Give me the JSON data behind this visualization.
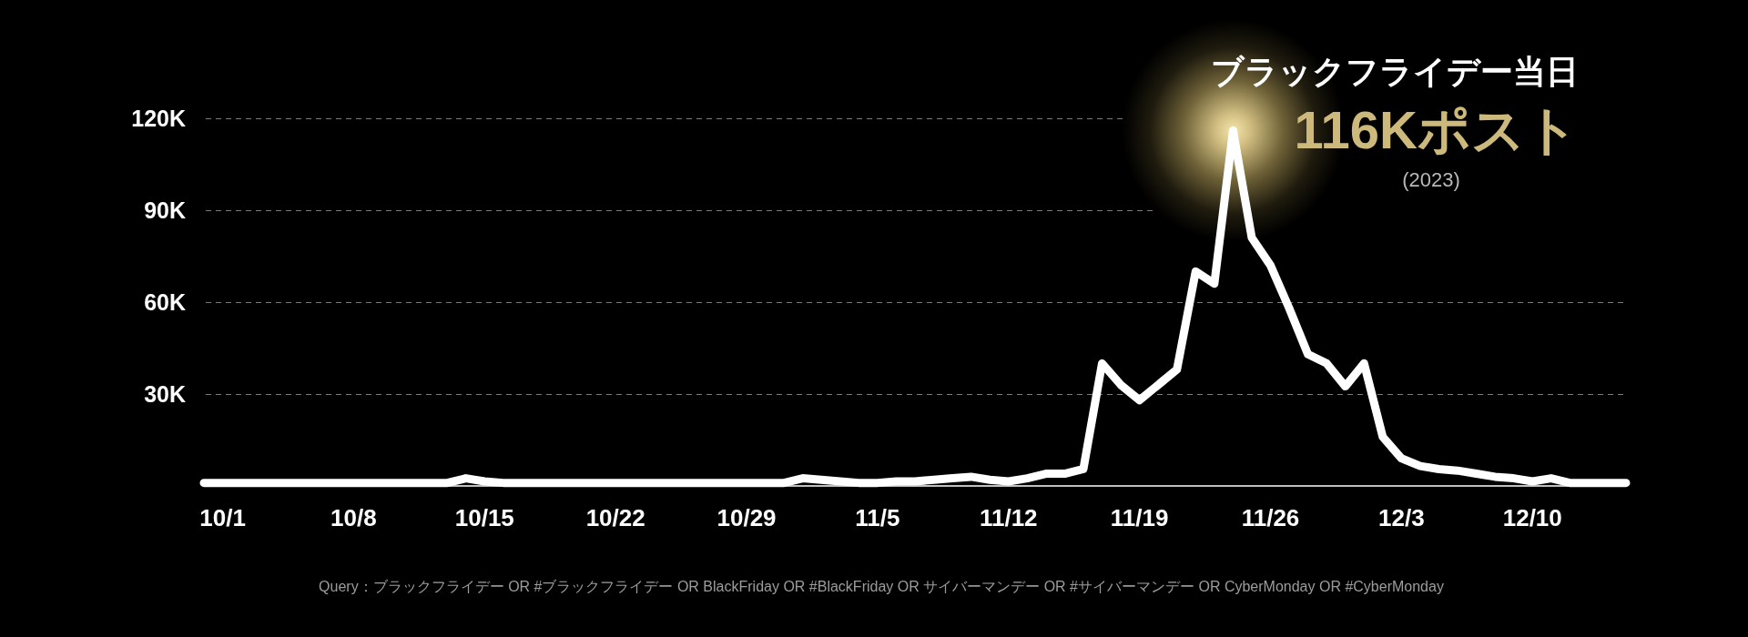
{
  "chart_data": {
    "type": "line",
    "categories": [
      null,
      "10/1",
      null,
      null,
      null,
      null,
      null,
      null,
      "10/8",
      null,
      null,
      null,
      null,
      null,
      null,
      "10/15",
      null,
      null,
      null,
      null,
      null,
      null,
      "10/22",
      null,
      null,
      null,
      null,
      null,
      null,
      "10/29",
      null,
      null,
      null,
      null,
      null,
      null,
      "11/5",
      null,
      null,
      null,
      null,
      null,
      null,
      "11/12",
      null,
      null,
      null,
      null,
      null,
      null,
      "11/19",
      null,
      null,
      null,
      null,
      null,
      null,
      "11/26",
      null,
      null,
      null,
      null,
      null,
      null,
      "12/3",
      null,
      null,
      null,
      null,
      null,
      null,
      "12/10",
      null,
      null,
      null,
      null,
      null
    ],
    "values": [
      1000,
      1000,
      1000,
      1000,
      1000,
      1000,
      1000,
      1000,
      1000,
      1000,
      1000,
      1000,
      1000,
      1000,
      2500,
      1500,
      1000,
      1000,
      1000,
      1000,
      1000,
      1000,
      1000,
      1000,
      1000,
      1000,
      1000,
      1000,
      1000,
      1000,
      1000,
      1000,
      2500,
      2000,
      1500,
      1000,
      1000,
      1500,
      1500,
      2000,
      2500,
      3000,
      2000,
      1500,
      2500,
      4000,
      4000,
      5500,
      40000,
      33000,
      28000,
      33000,
      38000,
      70000,
      66000,
      116000,
      81000,
      72000,
      58000,
      43000,
      40000,
      32500,
      40000,
      16000,
      9000,
      6500,
      5500,
      5000,
      4000,
      3000,
      2500,
      1500,
      2500,
      1000,
      1000,
      1000,
      1000
    ],
    "color": "#ffffff",
    "ylim": [
      0,
      120000
    ],
    "yticks": [
      {
        "value": 30000,
        "label": "30K"
      },
      {
        "value": 60000,
        "label": "60K"
      },
      {
        "value": 90000,
        "label": "90K"
      },
      {
        "value": 120000,
        "label": "120K"
      }
    ],
    "grid": "y",
    "marker": "none",
    "line_style": "solid",
    "annotations": [
      "ブラックフライデー当日",
      "116Kポスト",
      "(2023)",
      "Query：ブラックフライデー OR #ブラックフライデー OR BlackFriday OR #BlackFriday OR サイバーマンデー OR #サイバーマンデー OR CyberMonday OR #CyberMonday"
    ]
  }
}
